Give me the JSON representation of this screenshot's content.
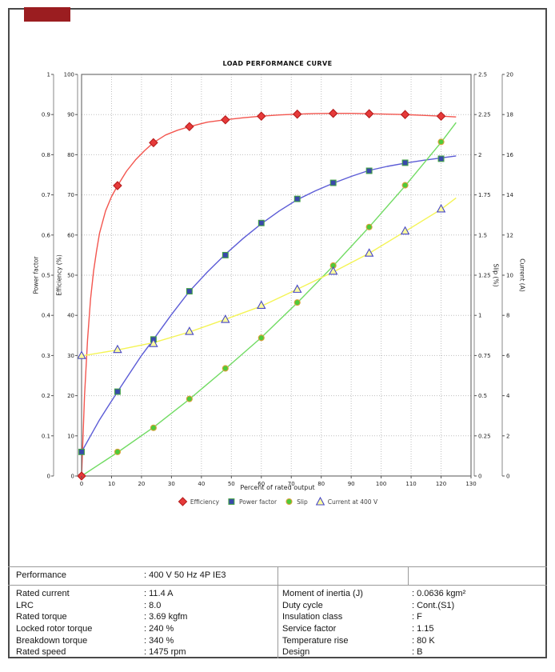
{
  "brand": {
    "logo_color": "#9b1d20"
  },
  "chart_data": {
    "type": "line",
    "title": "LOAD PERFORMANCE CURVE",
    "xlabel": "Percent of rated output",
    "xlim": [
      0,
      130
    ],
    "xstep": 10,
    "grid": true,
    "legend_position": "bottom",
    "axes": [
      {
        "id": "power_factor",
        "side": "left",
        "label": "Power factor",
        "lim": [
          0,
          1
        ],
        "step": 0.1
      },
      {
        "id": "efficiency",
        "side": "left",
        "label": "Efficiency (%)",
        "lim": [
          0,
          100
        ],
        "step": 10
      },
      {
        "id": "slip",
        "side": "right",
        "label": "Slip (%)",
        "lim": [
          0,
          2.5
        ],
        "step": 0.25
      },
      {
        "id": "current",
        "side": "right",
        "label": "Current (A)",
        "lim": [
          0,
          20
        ],
        "step": 2
      }
    ],
    "x_marks": [
      0,
      12,
      24,
      36,
      48,
      60,
      72,
      84,
      96,
      108,
      120
    ],
    "series": [
      {
        "name": "Efficiency",
        "axis": "efficiency",
        "marker": "diamond",
        "line_color": "#f3564f",
        "marker_fill": "#e63a3a",
        "marker_stroke": "#b71c1c",
        "values": [
          0,
          72.3,
          83,
          87,
          88.7,
          89.6,
          90.1,
          90.3,
          90.2,
          90,
          89.6
        ],
        "line": [
          [
            0,
            0
          ],
          [
            1,
            20
          ],
          [
            2,
            34
          ],
          [
            3,
            44
          ],
          [
            4,
            51
          ],
          [
            5,
            56
          ],
          [
            6,
            60.5
          ],
          [
            8,
            66
          ],
          [
            10,
            69.6
          ],
          [
            12,
            72.3
          ],
          [
            15,
            75.9
          ],
          [
            18,
            78.7
          ],
          [
            21,
            81
          ],
          [
            24,
            83
          ],
          [
            28,
            84.9
          ],
          [
            32,
            86.1
          ],
          [
            36,
            87
          ],
          [
            42,
            88.1
          ],
          [
            48,
            88.7
          ],
          [
            54,
            89.2
          ],
          [
            60,
            89.6
          ],
          [
            66,
            89.9
          ],
          [
            72,
            90.1
          ],
          [
            78,
            90.25
          ],
          [
            84,
            90.3
          ],
          [
            90,
            90.3
          ],
          [
            96,
            90.2
          ],
          [
            102,
            90.1
          ],
          [
            108,
            90
          ],
          [
            114,
            89.8
          ],
          [
            120,
            89.6
          ],
          [
            125,
            89.4
          ]
        ]
      },
      {
        "name": "Power factor",
        "axis": "power_factor",
        "marker": "square",
        "line_color": "#5b5bd6",
        "marker_fill": "#3949ab",
        "marker_stroke": "#43a047",
        "values": [
          0.06,
          0.21,
          0.34,
          0.46,
          0.55,
          0.63,
          0.69,
          0.73,
          0.76,
          0.78,
          0.79
        ],
        "line": [
          [
            0,
            0.06
          ],
          [
            3,
            0.1
          ],
          [
            6,
            0.14
          ],
          [
            9,
            0.175
          ],
          [
            12,
            0.21
          ],
          [
            16,
            0.255
          ],
          [
            20,
            0.3
          ],
          [
            24,
            0.34
          ],
          [
            30,
            0.402
          ],
          [
            36,
            0.46
          ],
          [
            42,
            0.508
          ],
          [
            48,
            0.552
          ],
          [
            54,
            0.592
          ],
          [
            60,
            0.628
          ],
          [
            66,
            0.66
          ],
          [
            72,
            0.688
          ],
          [
            78,
            0.71
          ],
          [
            84,
            0.729
          ],
          [
            90,
            0.746
          ],
          [
            96,
            0.761
          ],
          [
            102,
            0.771
          ],
          [
            108,
            0.779
          ],
          [
            114,
            0.786
          ],
          [
            120,
            0.792
          ],
          [
            125,
            0.797
          ]
        ]
      },
      {
        "name": "Slip",
        "axis": "slip",
        "marker": "circle",
        "line_color": "#70db62",
        "marker_fill": "#4ecb3a",
        "marker_stroke": "#d9a03a",
        "values": [
          null,
          0.15,
          0.3,
          0.48,
          0.67,
          0.86,
          1.08,
          1.31,
          1.55,
          1.81,
          2.08
        ],
        "line": [
          [
            0,
            0
          ],
          [
            12,
            0.147
          ],
          [
            24,
            0.303
          ],
          [
            36,
            0.478
          ],
          [
            48,
            0.667
          ],
          [
            60,
            0.862
          ],
          [
            72,
            1.078
          ],
          [
            84,
            1.308
          ],
          [
            96,
            1.55
          ],
          [
            108,
            1.806
          ],
          [
            120,
            2.076
          ],
          [
            125,
            2.2
          ]
        ]
      },
      {
        "name": "Current at 400 V",
        "axis": "current",
        "marker": "triangle",
        "line_color": "#f4f455",
        "marker_fill": "#fdfd9e",
        "marker_stroke": "#4646c8",
        "values": [
          6.0,
          6.3,
          6.6,
          7.2,
          7.8,
          8.5,
          9.3,
          10.2,
          11.1,
          12.2,
          13.3
        ],
        "line": [
          [
            0,
            5.98
          ],
          [
            12,
            6.28
          ],
          [
            24,
            6.64
          ],
          [
            36,
            7.17
          ],
          [
            48,
            7.8
          ],
          [
            60,
            8.46
          ],
          [
            72,
            9.3
          ],
          [
            84,
            10.16
          ],
          [
            96,
            11.09
          ],
          [
            108,
            12.18
          ],
          [
            120,
            13.28
          ],
          [
            125,
            13.85
          ]
        ]
      }
    ]
  },
  "table": {
    "performance": {
      "label": "Performance",
      "value": ": 400 V 50 Hz 4P IE3"
    },
    "left_rows": [
      {
        "label": "Rated current",
        "value": ": 11.4 A"
      },
      {
        "label": "LRC",
        "value": ": 8.0"
      },
      {
        "label": "Rated torque",
        "value": ": 3.69 kgfm"
      },
      {
        "label": "Locked rotor torque",
        "value": ": 240 %"
      },
      {
        "label": "Breakdown torque",
        "value": ": 340 %"
      },
      {
        "label": "Rated speed",
        "value": ": 1475 rpm"
      }
    ],
    "right_rows": [
      {
        "label": "Moment of inertia (J)",
        "value": ": 0.0636 kgm²"
      },
      {
        "label": "Duty cycle",
        "value": ": Cont.(S1)"
      },
      {
        "label": "Insulation class",
        "value": ": F"
      },
      {
        "label": "Service factor",
        "value": ": 1.15"
      },
      {
        "label": "Temperature rise",
        "value": ": 80 K"
      },
      {
        "label": "Design",
        "value": ": B"
      }
    ]
  }
}
